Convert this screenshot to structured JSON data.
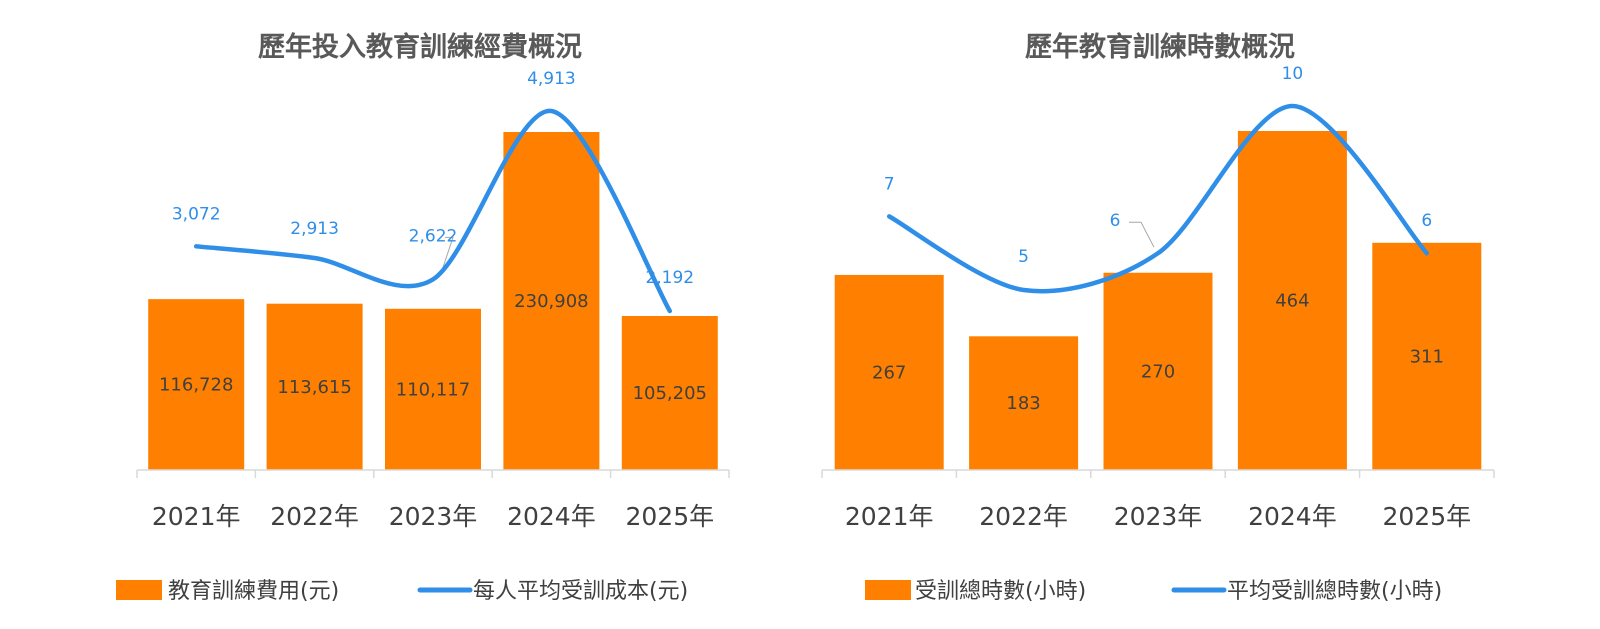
{
  "charts": [
    {
      "id": "budget",
      "title": "歷年投入教育訓練經費概況",
      "categories": [
        "2021年",
        "2022年",
        "2023年",
        "2024年",
        "2025年"
      ],
      "bar": {
        "name": "教育訓練費用(元)",
        "values": [
          116728,
          113615,
          110117,
          230908,
          105205
        ],
        "labels": [
          "116,728",
          "113,615",
          "110,117",
          "230,908",
          "105,205"
        ],
        "color": "#ff8000"
      },
      "line": {
        "name": "每人平均受訓成本(元)",
        "values": [
          3072,
          2913,
          2622,
          4913,
          2192
        ],
        "labels": [
          "3,072",
          "2,913",
          "2,622",
          "4,913",
          "2,192"
        ],
        "color": "#2e8ee8"
      }
    },
    {
      "id": "hours",
      "title": "歷年教育訓練時數概況",
      "categories": [
        "2021年",
        "2022年",
        "2023年",
        "2024年",
        "2025年"
      ],
      "bar": {
        "name": "受訓總時數(小時)",
        "values": [
          267,
          183,
          270,
          464,
          311
        ],
        "labels": [
          "267",
          "183",
          "270",
          "464",
          "311"
        ],
        "color": "#ff8000"
      },
      "line": {
        "name": "平均受訓總時數(小時)",
        "values": [
          7,
          5,
          6,
          10,
          6
        ],
        "labels": [
          "7",
          "5",
          "6",
          "10",
          "6"
        ],
        "color": "#2e8ee8"
      }
    }
  ],
  "chart_data": [
    {
      "type": "bar",
      "title": "歷年投入教育訓練經費概況",
      "categories": [
        "2021年",
        "2022年",
        "2023年",
        "2024年",
        "2025年"
      ],
      "series": [
        {
          "name": "教育訓練費用(元)",
          "type": "bar",
          "values": [
            116728,
            113615,
            110117,
            230908,
            105205
          ]
        },
        {
          "name": "每人平均受訓成本(元)",
          "type": "line",
          "values": [
            3072,
            2913,
            2622,
            4913,
            2192
          ]
        }
      ],
      "legend": "bottom",
      "grid": false
    },
    {
      "type": "bar",
      "title": "歷年教育訓練時數概況",
      "categories": [
        "2021年",
        "2022年",
        "2023年",
        "2024年",
        "2025年"
      ],
      "series": [
        {
          "name": "受訓總時數(小時)",
          "type": "bar",
          "values": [
            267,
            183,
            270,
            464,
            311
          ]
        },
        {
          "name": "平均受訓總時數(小時)",
          "type": "line",
          "values": [
            7,
            5,
            6,
            10,
            6
          ]
        }
      ],
      "legend": "bottom",
      "grid": false
    }
  ]
}
